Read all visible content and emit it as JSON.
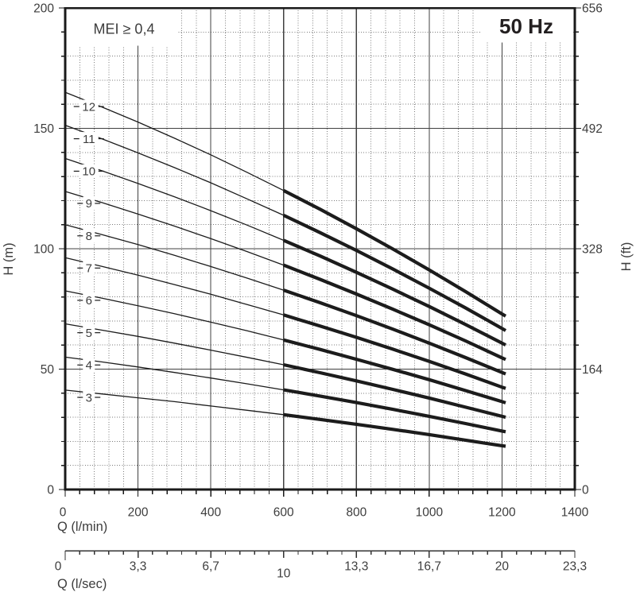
{
  "labels": {
    "mei_annotation": "MEI ≥ 0,4",
    "frequency": "50 Hz",
    "y_axis_left_title": "H (m)",
    "y_axis_right_title": "H (ft)",
    "x_axis_title": "Q (l/min)",
    "x_axis_secondary_title": "Q (l/sec)"
  },
  "colors": {
    "background": "#ffffff",
    "curve": "#1c1c1c",
    "axis": "#1a1a1a",
    "grid_major": "#404040",
    "grid_minor": "#7b7b7b",
    "text": "#3d3d3d"
  },
  "chart_data": {
    "type": "line",
    "title": "50 Hz",
    "annotation": "MEI ≥ 0,4",
    "description": "Multistage pump head curves H vs Q at 50 Hz. Curve number = number of stages. Bold segment = preferred operating range.",
    "x_axis": {
      "title": "Q (l/min)",
      "min": 0,
      "max": 1400,
      "major_tick_values": [
        0,
        200,
        400,
        600,
        800,
        1000,
        1200,
        1400
      ],
      "tick_labels": [
        "0",
        "200",
        "400",
        "600",
        "800",
        "1000",
        "1200",
        "1400"
      ],
      "minor_step": 40
    },
    "y_axis_left": {
      "title": "H (m)",
      "min": 0,
      "max": 200,
      "major_tick_values": [
        0,
        50,
        100,
        150,
        200
      ],
      "tick_labels": [
        "0",
        "50",
        "100",
        "150",
        "200"
      ],
      "minor_step": 10
    },
    "y_axis_right": {
      "title": "H (ft)",
      "tick_values_m": [
        200,
        150,
        100,
        50,
        0
      ],
      "tick_labels": [
        "656",
        "492",
        "328",
        "164",
        "0"
      ]
    },
    "x_axis_secondary": {
      "title": "Q (l/sec)",
      "tick_values_lmin": [
        0,
        200,
        400,
        600,
        800,
        1000,
        1200,
        1400
      ],
      "tick_values_lsec": [
        0,
        3.3,
        6.7,
        10,
        13.3,
        16.7,
        20,
        23.3
      ],
      "tick_labels": [
        "0",
        "3,3",
        "6,7",
        "10",
        "13,3",
        "16,7",
        "20",
        "23,3"
      ],
      "minor_step_lmin": 40
    },
    "bold_segment_lmin": [
      600,
      1210
    ],
    "series": [
      {
        "label": "12",
        "stages": 12,
        "points": [
          [
            0,
            165.0
          ],
          [
            100,
            158.9
          ],
          [
            200,
            152.6
          ],
          [
            300,
            145.9
          ],
          [
            400,
            139.0
          ],
          [
            500,
            131.7
          ],
          [
            600,
            124.2
          ],
          [
            700,
            116.4
          ],
          [
            800,
            108.3
          ],
          [
            900,
            99.9
          ],
          [
            1000,
            91.2
          ],
          [
            1100,
            82.2
          ],
          [
            1200,
            72.9
          ],
          [
            1210,
            72.0
          ]
        ]
      },
      {
        "label": "11",
        "stages": 11,
        "points": [
          [
            0,
            151.3
          ],
          [
            100,
            145.7
          ],
          [
            200,
            139.8
          ],
          [
            300,
            133.7
          ],
          [
            400,
            127.4
          ],
          [
            500,
            120.7
          ],
          [
            600,
            113.9
          ],
          [
            700,
            106.7
          ],
          [
            800,
            99.3
          ],
          [
            900,
            91.6
          ],
          [
            1000,
            83.6
          ],
          [
            1100,
            75.4
          ],
          [
            1200,
            66.9
          ],
          [
            1210,
            66.0
          ]
        ]
      },
      {
        "label": "10",
        "stages": 10,
        "points": [
          [
            0,
            137.5
          ],
          [
            100,
            132.4
          ],
          [
            200,
            127.1
          ],
          [
            300,
            121.6
          ],
          [
            400,
            115.8
          ],
          [
            500,
            109.8
          ],
          [
            600,
            103.5
          ],
          [
            700,
            97.0
          ],
          [
            800,
            90.2
          ],
          [
            900,
            83.2
          ],
          [
            1000,
            76.0
          ],
          [
            1100,
            68.5
          ],
          [
            1200,
            60.8
          ],
          [
            1210,
            60.0
          ]
        ]
      },
      {
        "label": "9",
        "stages": 9,
        "points": [
          [
            0,
            123.8
          ],
          [
            100,
            119.2
          ],
          [
            200,
            114.4
          ],
          [
            300,
            109.4
          ],
          [
            400,
            104.2
          ],
          [
            500,
            98.8
          ],
          [
            600,
            93.2
          ],
          [
            700,
            87.3
          ],
          [
            800,
            81.2
          ],
          [
            900,
            74.9
          ],
          [
            1000,
            68.4
          ],
          [
            1100,
            61.7
          ],
          [
            1200,
            54.7
          ],
          [
            1210,
            54.0
          ]
        ]
      },
      {
        "label": "8",
        "stages": 8,
        "points": [
          [
            0,
            110.0
          ],
          [
            100,
            105.9
          ],
          [
            200,
            101.7
          ],
          [
            300,
            97.3
          ],
          [
            400,
            92.6
          ],
          [
            500,
            87.8
          ],
          [
            600,
            82.8
          ],
          [
            700,
            77.6
          ],
          [
            800,
            72.2
          ],
          [
            900,
            66.6
          ],
          [
            1000,
            60.8
          ],
          [
            1100,
            54.8
          ],
          [
            1200,
            48.6
          ],
          [
            1210,
            48.0
          ]
        ]
      },
      {
        "label": "7",
        "stages": 7,
        "points": [
          [
            0,
            96.3
          ],
          [
            100,
            92.7
          ],
          [
            200,
            89.0
          ],
          [
            300,
            85.1
          ],
          [
            400,
            81.1
          ],
          [
            500,
            76.8
          ],
          [
            600,
            72.5
          ],
          [
            700,
            67.9
          ],
          [
            800,
            63.2
          ],
          [
            900,
            58.3
          ],
          [
            1000,
            53.2
          ],
          [
            1100,
            48.0
          ],
          [
            1200,
            42.5
          ],
          [
            1210,
            42.0
          ]
        ]
      },
      {
        "label": "6",
        "stages": 6,
        "points": [
          [
            0,
            82.5
          ],
          [
            100,
            79.5
          ],
          [
            200,
            76.3
          ],
          [
            300,
            73.0
          ],
          [
            400,
            69.5
          ],
          [
            500,
            65.9
          ],
          [
            600,
            62.1
          ],
          [
            700,
            58.2
          ],
          [
            800,
            54.1
          ],
          [
            900,
            49.9
          ],
          [
            1000,
            45.6
          ],
          [
            1100,
            41.1
          ],
          [
            1200,
            36.5
          ],
          [
            1210,
            36.0
          ]
        ]
      },
      {
        "label": "5",
        "stages": 5,
        "points": [
          [
            0,
            68.8
          ],
          [
            100,
            66.2
          ],
          [
            200,
            63.6
          ],
          [
            300,
            60.8
          ],
          [
            400,
            57.9
          ],
          [
            500,
            54.9
          ],
          [
            600,
            51.8
          ],
          [
            700,
            48.5
          ],
          [
            800,
            45.1
          ],
          [
            900,
            41.6
          ],
          [
            1000,
            38.0
          ],
          [
            1100,
            34.2
          ],
          [
            1200,
            30.4
          ],
          [
            1210,
            30.0
          ]
        ]
      },
      {
        "label": "4",
        "stages": 4,
        "points": [
          [
            0,
            55.0
          ],
          [
            100,
            53.0
          ],
          [
            200,
            50.9
          ],
          [
            300,
            48.6
          ],
          [
            400,
            46.3
          ],
          [
            500,
            43.9
          ],
          [
            600,
            41.4
          ],
          [
            700,
            38.8
          ],
          [
            800,
            36.1
          ],
          [
            900,
            33.3
          ],
          [
            1000,
            30.4
          ],
          [
            1100,
            27.4
          ],
          [
            1200,
            24.3
          ],
          [
            1210,
            24.0
          ]
        ]
      },
      {
        "label": "3",
        "stages": 3,
        "points": [
          [
            0,
            41.3
          ],
          [
            100,
            39.7
          ],
          [
            200,
            38.1
          ],
          [
            300,
            36.5
          ],
          [
            400,
            34.7
          ],
          [
            500,
            32.9
          ],
          [
            600,
            31.1
          ],
          [
            700,
            29.1
          ],
          [
            800,
            27.1
          ],
          [
            900,
            25.0
          ],
          [
            1000,
            22.8
          ],
          [
            1100,
            20.5
          ],
          [
            1200,
            18.2
          ],
          [
            1210,
            18.0
          ]
        ]
      }
    ]
  }
}
